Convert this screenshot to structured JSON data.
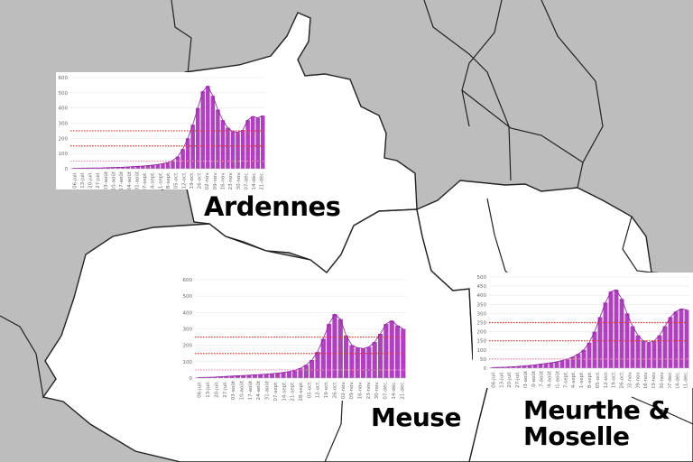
{
  "map": {
    "background_color": "#bdbdbd",
    "region_fill": "#ffffff",
    "border_color": "#222222"
  },
  "labels": {
    "ardennes": "Ardennes",
    "meuse": "Meuse",
    "meurthe_moselle": "Meurthe & Moselle"
  },
  "chart_data": [
    {
      "type": "bar",
      "department": "Ardennes",
      "ylim": [
        0,
        600
      ],
      "yticks": [
        0,
        100,
        200,
        300,
        400,
        500,
        600
      ],
      "date_labels": [
        "06-juil.",
        "13-juil.",
        "20-juil.",
        "27-juil.",
        "03-août",
        "10-août",
        "17-août",
        "24-août",
        "31-août",
        "07-sept.",
        "14-sept.",
        "21-sept.",
        "28-sept.",
        "05-oct.",
        "12-oct.",
        "19-oct.",
        "26-oct.",
        "02-nov.",
        "09-nov.",
        "16-nov.",
        "23-nov.",
        "30-nov.",
        "07-déc.",
        "14-déc.",
        "21-déc."
      ],
      "series_color": "#a020b0",
      "thresholds": [
        {
          "value": 250,
          "color": "#e53935"
        },
        {
          "value": 150,
          "color": "#e53935"
        },
        {
          "value": 50,
          "color": "#f48fb1"
        }
      ],
      "values": [
        3,
        3,
        4,
        4,
        5,
        5,
        6,
        7,
        8,
        9,
        10,
        12,
        14,
        16,
        18,
        21,
        24,
        28,
        33,
        40,
        55,
        80,
        130,
        200,
        290,
        400,
        510,
        545,
        480,
        390,
        320,
        270,
        245,
        240,
        255,
        320,
        345,
        335,
        350
      ]
    },
    {
      "type": "bar",
      "department": "Meuse",
      "ylim": [
        0,
        600
      ],
      "yticks": [
        0,
        100,
        200,
        300,
        400,
        500,
        600
      ],
      "date_labels": [
        "06-juil.",
        "13-juil.",
        "20-juil.",
        "27-juil.",
        "03-août",
        "10-août",
        "17-août",
        "24-août",
        "31-août",
        "07-sept.",
        "14-sept.",
        "21-sept.",
        "28-sept.",
        "05-oct.",
        "12-oct.",
        "19-oct.",
        "26-oct.",
        "02-nov.",
        "09-nov.",
        "16-nov.",
        "23-nov.",
        "30-nov.",
        "07-déc.",
        "14-déc.",
        "21-déc."
      ],
      "series_color": "#a020b0",
      "thresholds": [
        {
          "value": 250,
          "color": "#e53935"
        },
        {
          "value": 150,
          "color": "#e53935"
        },
        {
          "value": 50,
          "color": "#f48fb1"
        }
      ],
      "values": [
        3,
        4,
        5,
        6,
        8,
        10,
        12,
        14,
        16,
        18,
        20,
        22,
        24,
        27,
        30,
        34,
        40,
        48,
        60,
        80,
        110,
        160,
        240,
        330,
        390,
        360,
        260,
        200,
        185,
        180,
        190,
        220,
        270,
        330,
        350,
        320,
        300
      ]
    },
    {
      "type": "bar",
      "department": "Meurthe & Moselle",
      "ylim": [
        0,
        500
      ],
      "yticks": [
        0,
        50,
        100,
        150,
        200,
        250,
        300,
        350,
        400,
        450,
        500
      ],
      "date_labels": [
        "06-juil.",
        "13-juil.",
        "20-juil.",
        "27-juil.",
        "03-août",
        "10-août",
        "17-août",
        "24-août",
        "31-août",
        "07-sept.",
        "14-sept.",
        "21-sept.",
        "28-sept.",
        "05-oct.",
        "12-oct.",
        "19-oct.",
        "26-oct.",
        "02-nov.",
        "09-nov.",
        "16-nov.",
        "23-nov.",
        "30-nov.",
        "07-déc.",
        "14-déc.",
        "21-déc."
      ],
      "series_color": "#a020b0",
      "thresholds": [
        {
          "value": 250,
          "color": "#e53935"
        },
        {
          "value": 150,
          "color": "#e53935"
        },
        {
          "value": 50,
          "color": "#f48fb1"
        }
      ],
      "values": [
        3,
        4,
        5,
        6,
        8,
        10,
        12,
        15,
        18,
        22,
        26,
        30,
        35,
        42,
        50,
        62,
        78,
        100,
        140,
        200,
        280,
        360,
        420,
        430,
        380,
        300,
        230,
        180,
        150,
        140,
        150,
        180,
        230,
        280,
        310,
        325,
        320
      ]
    }
  ]
}
